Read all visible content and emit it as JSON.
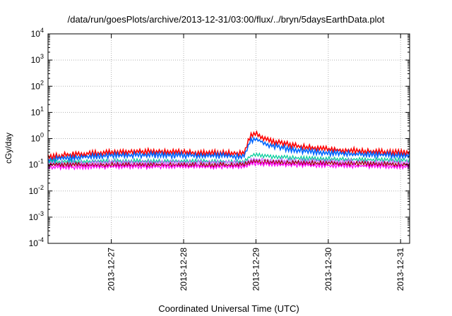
{
  "chart_data": {
    "type": "line",
    "title": "/data/run/goesPlots/archive/2013-12-31/03:00/flux/../bryn/5daysEarthData.plot",
    "xlabel": "Coordinated Universal Time (UTC)",
    "ylabel": "cGy/day",
    "yscale": "log",
    "ylim": [
      0.0001,
      10000
    ],
    "y_ticks": [
      {
        "base": "10",
        "exp": "-4"
      },
      {
        "base": "10",
        "exp": "-3"
      },
      {
        "base": "10",
        "exp": "-2"
      },
      {
        "base": "10",
        "exp": "-1"
      },
      {
        "base": "10",
        "exp": "0"
      },
      {
        "base": "10",
        "exp": "1"
      },
      {
        "base": "10",
        "exp": "2"
      },
      {
        "base": "10",
        "exp": "3"
      },
      {
        "base": "10",
        "exp": "4"
      }
    ],
    "xlim": [
      "2013-12-26 03:00",
      "2013-12-31 03:00"
    ],
    "x_ticks": [
      "2013-12-27",
      "2013-12-28",
      "2013-12-29",
      "2013-12-30",
      "2013-12-31"
    ],
    "grid": true,
    "legend": "none",
    "series": [
      {
        "color": "#ff0000",
        "x": [
          "2013-12-26 03:00",
          "2013-12-26 12:00",
          "2013-12-27 00:00",
          "2013-12-27 12:00",
          "2013-12-28 00:00",
          "2013-12-28 12:00",
          "2013-12-28 20:00",
          "2013-12-28 22:00",
          "2013-12-29 00:00",
          "2013-12-29 04:00",
          "2013-12-29 12:00",
          "2013-12-30 00:00",
          "2013-12-30 12:00",
          "2013-12-31 03:00"
        ],
        "values": [
          0.2,
          0.25,
          0.3,
          0.32,
          0.3,
          0.28,
          0.27,
          1.2,
          1.5,
          0.9,
          0.55,
          0.38,
          0.33,
          0.28
        ]
      },
      {
        "color": "#0066ff",
        "x": [
          "2013-12-26 03:00",
          "2013-12-26 12:00",
          "2013-12-27 00:00",
          "2013-12-27 12:00",
          "2013-12-28 00:00",
          "2013-12-28 12:00",
          "2013-12-28 20:00",
          "2013-12-28 22:00",
          "2013-12-29 00:00",
          "2013-12-29 04:00",
          "2013-12-29 12:00",
          "2013-12-30 00:00",
          "2013-12-30 12:00",
          "2013-12-31 03:00"
        ],
        "values": [
          0.16,
          0.19,
          0.23,
          0.24,
          0.23,
          0.22,
          0.21,
          0.8,
          0.95,
          0.6,
          0.38,
          0.28,
          0.25,
          0.22
        ]
      },
      {
        "color": "#00cc99",
        "x": [
          "2013-12-26 03:00",
          "2013-12-27 00:00",
          "2013-12-28 00:00",
          "2013-12-28 20:00",
          "2013-12-28 23:00",
          "2013-12-29 06:00",
          "2013-12-29 18:00",
          "2013-12-30 12:00",
          "2013-12-31 03:00"
        ],
        "values": [
          0.13,
          0.14,
          0.14,
          0.13,
          0.25,
          0.2,
          0.17,
          0.16,
          0.15
        ]
      },
      {
        "color": "#cc66ff",
        "x": [
          "2013-12-26 03:00",
          "2013-12-27 00:00",
          "2013-12-28 00:00",
          "2013-12-28 20:00",
          "2013-12-28 23:00",
          "2013-12-29 12:00",
          "2013-12-30 12:00",
          "2013-12-31 03:00"
        ],
        "values": [
          0.11,
          0.12,
          0.12,
          0.12,
          0.16,
          0.14,
          0.13,
          0.12
        ]
      },
      {
        "color": "#990000",
        "x": [
          "2013-12-26 03:00",
          "2013-12-27 00:00",
          "2013-12-28 00:00",
          "2013-12-28 20:00",
          "2013-12-28 23:00",
          "2013-12-29 12:00",
          "2013-12-30 12:00",
          "2013-12-31 03:00"
        ],
        "values": [
          0.1,
          0.1,
          0.1,
          0.1,
          0.13,
          0.12,
          0.11,
          0.1
        ]
      },
      {
        "color": "#ff00ff",
        "x": [
          "2013-12-26 03:00",
          "2013-12-27 00:00",
          "2013-12-28 00:00",
          "2013-12-28 20:00",
          "2013-12-28 23:00",
          "2013-12-29 12:00",
          "2013-12-30 12:00",
          "2013-12-31 03:00"
        ],
        "values": [
          0.08,
          0.085,
          0.085,
          0.085,
          0.11,
          0.1,
          0.09,
          0.085
        ]
      }
    ]
  }
}
